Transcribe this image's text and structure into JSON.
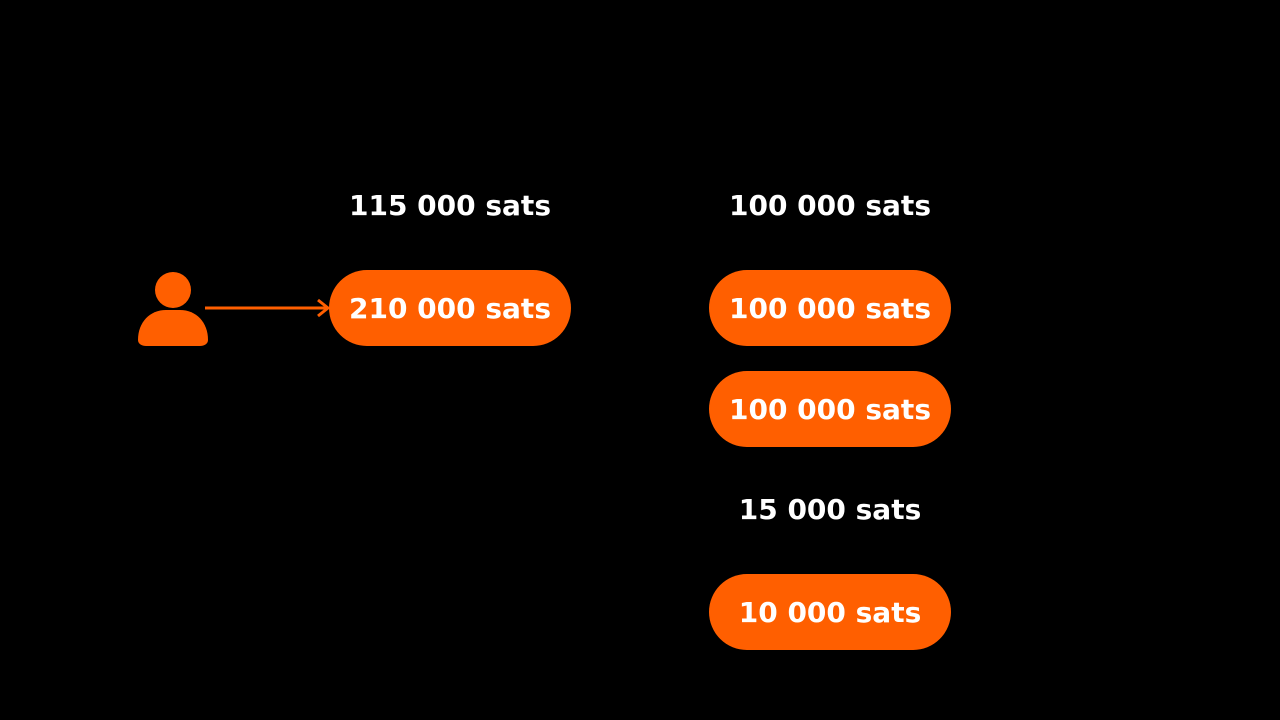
{
  "colors": {
    "background": "#000000",
    "accent": "#ff5f00",
    "text": "#ffffff"
  },
  "icons": {
    "user": "user-icon",
    "arrow": "arrow-right-icon"
  },
  "input": {
    "caption": "115 000 sats",
    "pill": "210 000 sats"
  },
  "outputs": {
    "top_caption": "100 000 sats",
    "pill_1": "100 000 sats",
    "pill_2": "100 000 sats",
    "bottom_caption": "15 000 sats",
    "pill_3": "10 000 sats"
  }
}
